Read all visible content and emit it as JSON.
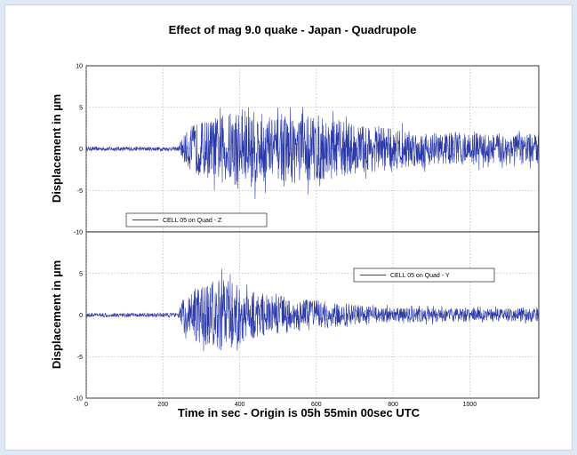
{
  "chart_data": {
    "type": "line",
    "title": "Effect of mag 9.0 quake - Japan - Quadrupole",
    "xlabel": "Time in sec - Origin is 05h 55min 00sec UTC",
    "xlim": [
      0,
      1180
    ],
    "xticks": [
      "0",
      "200",
      "400",
      "600",
      "800",
      "1000"
    ],
    "grid": true,
    "line_color": "#2b3aa8",
    "panels": [
      {
        "ylabel": "Displacement in µm",
        "ylim": [
          -10,
          10
        ],
        "yticks": [
          "10",
          "5",
          "0",
          "-5",
          "-10"
        ],
        "legend_position": "bottom-left",
        "series": [
          {
            "name": "CELL 05 on Quad - Z",
            "onset_time": 245,
            "envelope": [
              {
                "x": 0,
                "y": 0.25
              },
              {
                "x": 240,
                "y": 0.25
              },
              {
                "x": 250,
                "y": 1.5
              },
              {
                "x": 280,
                "y": 3.0
              },
              {
                "x": 350,
                "y": 4.0
              },
              {
                "x": 400,
                "y": 5.0
              },
              {
                "x": 500,
                "y": 3.8
              },
              {
                "x": 560,
                "y": 4.5
              },
              {
                "x": 700,
                "y": 3.0
              },
              {
                "x": 900,
                "y": 2.0
              },
              {
                "x": 1180,
                "y": 1.8
              }
            ]
          }
        ]
      },
      {
        "ylabel": "Displacement in µm",
        "ylim": [
          -10,
          10
        ],
        "yticks": [
          "5",
          "0",
          "-5",
          "-10"
        ],
        "legend_position": "top-right",
        "series": [
          {
            "name": "CELL 05 on Quad - Y",
            "onset_time": 245,
            "envelope": [
              {
                "x": 0,
                "y": 0.25
              },
              {
                "x": 240,
                "y": 0.25
              },
              {
                "x": 250,
                "y": 1.8
              },
              {
                "x": 300,
                "y": 3.5
              },
              {
                "x": 360,
                "y": 4.5
              },
              {
                "x": 420,
                "y": 3.0
              },
              {
                "x": 550,
                "y": 2.0
              },
              {
                "x": 750,
                "y": 1.0
              },
              {
                "x": 1000,
                "y": 0.8
              },
              {
                "x": 1180,
                "y": 0.8
              }
            ]
          }
        ]
      }
    ]
  }
}
